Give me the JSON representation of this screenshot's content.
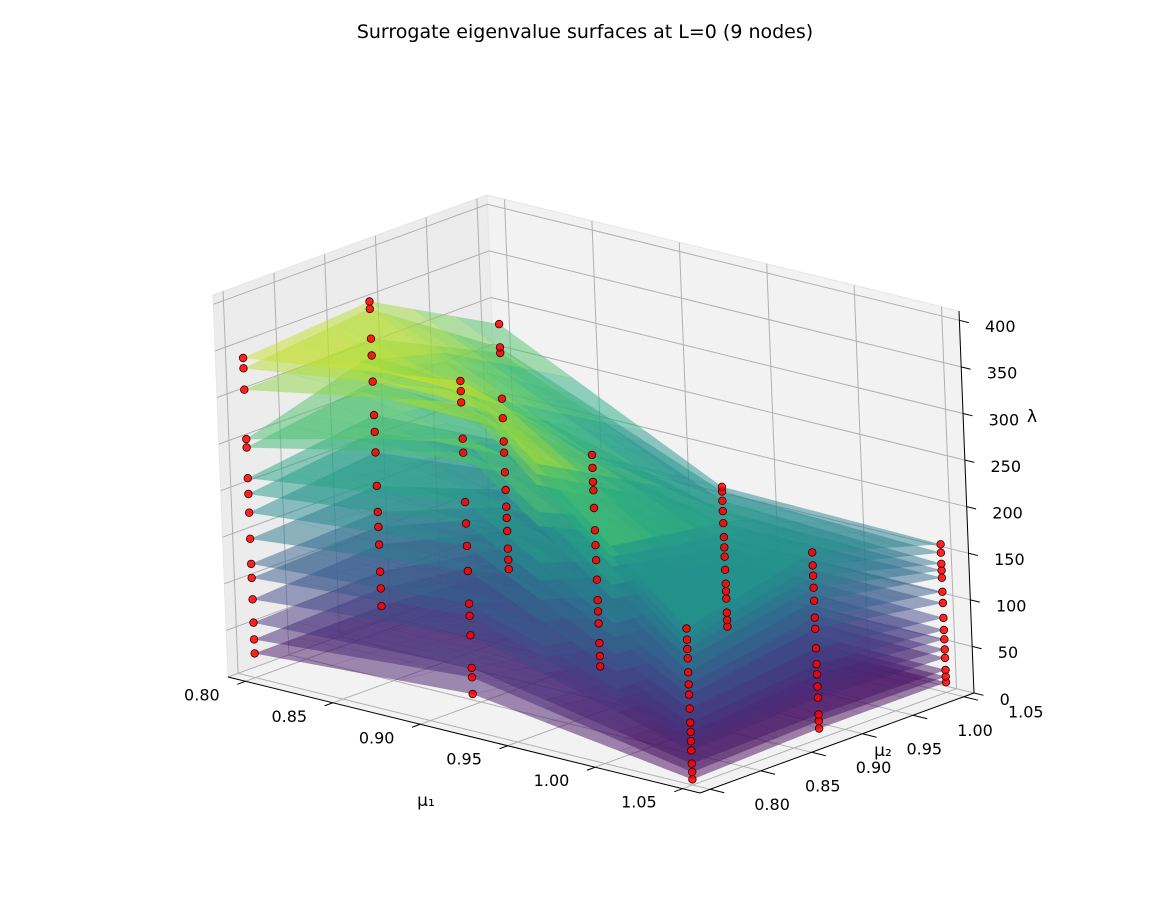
{
  "chart_data": {
    "type": "surface3d",
    "title": "Surrogate eigenvalue surfaces at L=0  (9 nodes)",
    "xlabel": "μ₁",
    "ylabel": "μ₂",
    "zlabel": "λ",
    "xlim": [
      0.79,
      1.06
    ],
    "ylim": [
      0.79,
      1.06
    ],
    "zlim": [
      0,
      410
    ],
    "x_ticks": [
      "0.80",
      "0.85",
      "0.90",
      "0.95",
      "1.00",
      "1.05"
    ],
    "y_ticks": [
      "0.80",
      "0.85",
      "0.90",
      "0.95",
      "1.00",
      "1.05"
    ],
    "z_ticks": [
      "0",
      "50",
      "100",
      "150",
      "200",
      "250",
      "300",
      "350",
      "400"
    ],
    "x": [
      0.8,
      0.925,
      1.05
    ],
    "y": [
      0.8,
      0.925,
      1.05
    ],
    "grid": true,
    "colormap": "viridis",
    "surface_alpha": 0.5,
    "node_marker_color": "#ff0000",
    "node_edge_color": "#330000",
    "series": [
      {
        "values": [
          [
            26,
            27,
            17
          ],
          [
            40,
            20,
            13
          ],
          [
            6,
            11,
            11
          ]
        ]
      },
      {
        "values": [
          [
            41,
            46,
            27
          ],
          [
            58,
            31,
            20
          ],
          [
            14,
            19,
            17
          ]
        ]
      },
      {
        "values": [
          [
            59,
            64,
            39
          ],
          [
            68,
            45,
            28
          ],
          [
            23,
            26,
            24
          ]
        ]
      },
      {
        "values": [
          [
            84,
            93,
            58
          ],
          [
            103,
            66,
            43
          ],
          [
            37,
            44,
            37
          ]
        ]
      },
      {
        "values": [
          [
            107,
            112,
            72
          ],
          [
            124,
            79,
            51
          ],
          [
            47,
            56,
            46
          ]
        ]
      },
      {
        "values": [
          [
            122,
            128,
            84
          ],
          [
            137,
            91,
            59
          ],
          [
            57,
            69,
            57
          ]
        ]
      },
      {
        "values": [
          [
            149,
            156,
            102
          ],
          [
            172,
            113,
            74
          ],
          [
            67,
            80,
            67
          ]
        ]
      },
      {
        "values": [
          [
            177,
            192,
            121
          ],
          [
            199,
            134,
            88
          ],
          [
            82,
            97,
            80
          ]
        ]
      },
      {
        "values": [
          [
            197,
            214,
            142
          ],
          [
            223,
            150,
            98
          ],
          [
            97,
            118,
            96
          ]
        ]
      },
      {
        "values": [
          [
            214,
            232,
            154
          ],
          [
            246,
            166,
            109
          ],
          [
            108,
            130,
            108
          ]
        ]
      },
      {
        "values": [
          [
            247,
            268,
            179
          ],
          [
            299,
            190,
            124
          ],
          [
            121,
            148,
            123
          ]
        ]
      },
      {
        "values": [
          [
            256,
            296,
            200
          ],
          [
            314,
            209,
            137
          ],
          [
            136,
            162,
            131
          ]
        ]
      },
      {
        "values": [
          [
            309,
            314,
            249
          ],
          [
            353,
            218,
            148
          ],
          [
            146,
            175,
            138
          ]
        ]
      },
      {
        "values": [
          [
            332,
            346,
            255
          ],
          [
            365,
            233,
            158
          ],
          [
            156,
            186,
            150
          ]
        ]
      },
      {
        "values": [
          [
            343,
            354,
            280
          ],
          [
            376,
            247,
            163
          ],
          [
            168,
            200,
            159
          ]
        ]
      }
    ]
  }
}
